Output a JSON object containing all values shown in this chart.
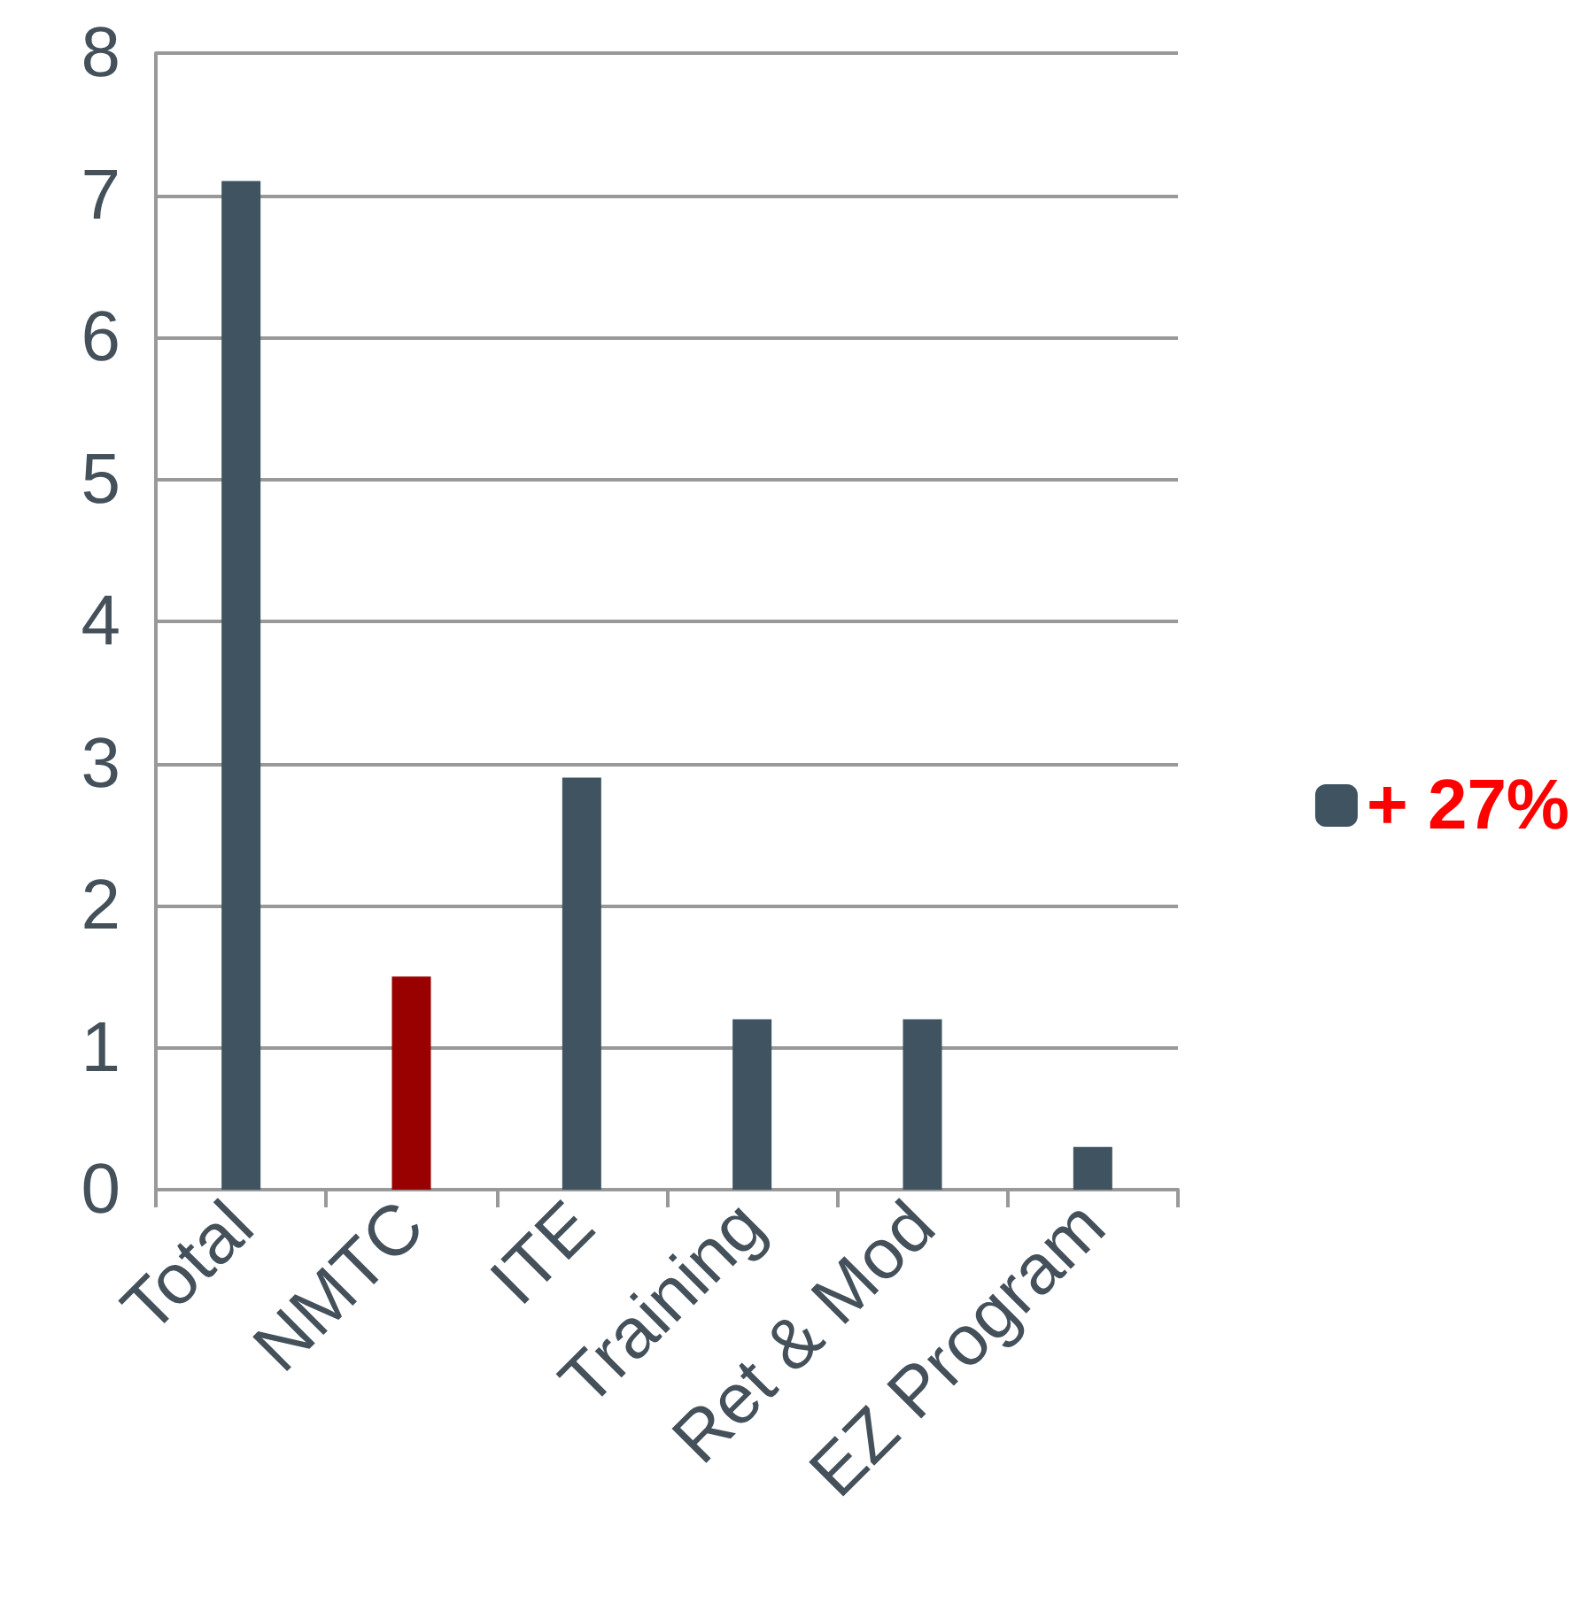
{
  "chart_data": {
    "type": "bar",
    "categories": [
      "Total",
      "NMTC",
      "ITE",
      "Training",
      "Ret & Mod",
      "EZ Program"
    ],
    "series": [
      {
        "name": "+ 27%",
        "color": "#3f5361",
        "colors": [
          "#3f5361",
          "#990000",
          "#3f5361",
          "#3f5361",
          "#3f5361",
          "#3f5361"
        ],
        "values": [
          7.1,
          1.5,
          2.9,
          1.2,
          1.2,
          0.3
        ]
      }
    ],
    "ylim": [
      0,
      8
    ],
    "yticks": [
      0,
      1,
      2,
      3,
      4,
      5,
      6,
      7,
      8
    ],
    "grid": "y",
    "legend": "right"
  }
}
